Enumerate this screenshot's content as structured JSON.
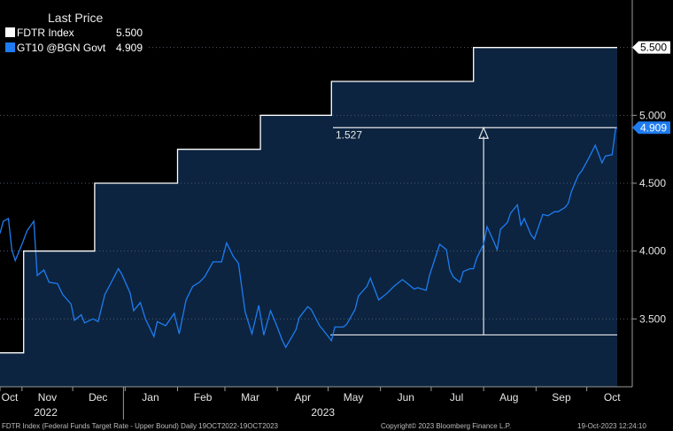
{
  "legend": {
    "title": "Last Price",
    "items": [
      {
        "label": "FDTR Index",
        "value": "5.500",
        "color": "#ffffff"
      },
      {
        "label": "GT10 @BGN Govt",
        "value": "4.909",
        "color": "#1e7cf0"
      }
    ]
  },
  "footer": {
    "source": "FDTR Index (Federal Funds Target Rate - Upper Bound)  Daily 19OCT2022-19OCT2023",
    "copyright": "Copyright© 2023 Bloomberg Finance L.P.",
    "timestamp": "19-Oct-2023 12:24:10"
  },
  "colors": {
    "background": "#000000",
    "plot_fill": "#0c2440",
    "fdtr": "#ffffff",
    "gt10": "#1e7cf0"
  },
  "chart_data": {
    "type": "line",
    "x_range": [
      "2022-10-19",
      "2023-10-19"
    ],
    "ylim": [
      3.0,
      5.85
    ],
    "y_ticks": [
      "3.500",
      "4.000",
      "4.500",
      "5.000",
      "5.500"
    ],
    "x_ticks": [
      {
        "label": "Oct",
        "date": "2022-10-01"
      },
      {
        "label": "Nov",
        "date": "2022-11-01"
      },
      {
        "label": "Dec",
        "date": "2022-12-01"
      },
      {
        "label": "Jan",
        "date": "2023-01-01"
      },
      {
        "label": "Feb",
        "date": "2023-02-01"
      },
      {
        "label": "Mar",
        "date": "2023-03-01"
      },
      {
        "label": "Apr",
        "date": "2023-04-01"
      },
      {
        "label": "May",
        "date": "2023-05-01"
      },
      {
        "label": "Jun",
        "date": "2023-06-01"
      },
      {
        "label": "Jul",
        "date": "2023-07-01"
      },
      {
        "label": "Aug",
        "date": "2023-08-01"
      },
      {
        "label": "Sep",
        "date": "2023-09-01"
      },
      {
        "label": "Oct",
        "date": "2023-10-01"
      }
    ],
    "year_labels": [
      {
        "label": "2022",
        "date": "2022-11-15"
      },
      {
        "label": "2023",
        "date": "2023-04-28"
      }
    ],
    "year_divider": "2022-12-31",
    "series": [
      {
        "name": "FDTR Index",
        "last": 5.5,
        "step": true,
        "points": [
          [
            "2022-10-19",
            3.25
          ],
          [
            "2022-11-02",
            4.0
          ],
          [
            "2022-12-14",
            4.5
          ],
          [
            "2023-02-01",
            4.75
          ],
          [
            "2023-03-22",
            5.0
          ],
          [
            "2023-05-03",
            5.25
          ],
          [
            "2023-07-26",
            5.5
          ],
          [
            "2023-10-19",
            5.5
          ]
        ]
      },
      {
        "name": "GT10 @BGN Govt",
        "last": 4.909,
        "points": [
          [
            "2022-10-19",
            4.13
          ],
          [
            "2022-10-21",
            4.22
          ],
          [
            "2022-10-24",
            4.24
          ],
          [
            "2022-10-26",
            4.01
          ],
          [
            "2022-10-28",
            3.93
          ],
          [
            "2022-11-01",
            4.05
          ],
          [
            "2022-11-04",
            4.15
          ],
          [
            "2022-11-08",
            4.22
          ],
          [
            "2022-11-10",
            3.82
          ],
          [
            "2022-11-14",
            3.86
          ],
          [
            "2022-11-17",
            3.77
          ],
          [
            "2022-11-22",
            3.76
          ],
          [
            "2022-11-25",
            3.68
          ],
          [
            "2022-11-30",
            3.61
          ],
          [
            "2022-12-02",
            3.49
          ],
          [
            "2022-12-06",
            3.53
          ],
          [
            "2022-12-08",
            3.47
          ],
          [
            "2022-12-13",
            3.5
          ],
          [
            "2022-12-16",
            3.48
          ],
          [
            "2022-12-20",
            3.68
          ],
          [
            "2022-12-23",
            3.75
          ],
          [
            "2022-12-28",
            3.87
          ],
          [
            "2022-12-30",
            3.83
          ],
          [
            "2023-01-04",
            3.69
          ],
          [
            "2023-01-06",
            3.56
          ],
          [
            "2023-01-10",
            3.62
          ],
          [
            "2023-01-13",
            3.5
          ],
          [
            "2023-01-18",
            3.37
          ],
          [
            "2023-01-20",
            3.48
          ],
          [
            "2023-01-25",
            3.45
          ],
          [
            "2023-01-30",
            3.54
          ],
          [
            "2023-02-02",
            3.39
          ],
          [
            "2023-02-06",
            3.64
          ],
          [
            "2023-02-10",
            3.74
          ],
          [
            "2023-02-14",
            3.77
          ],
          [
            "2023-02-17",
            3.81
          ],
          [
            "2023-02-22",
            3.92
          ],
          [
            "2023-02-27",
            3.92
          ],
          [
            "2023-03-02",
            4.06
          ],
          [
            "2023-03-06",
            3.96
          ],
          [
            "2023-03-09",
            3.91
          ],
          [
            "2023-03-13",
            3.55
          ],
          [
            "2023-03-17",
            3.39
          ],
          [
            "2023-03-21",
            3.6
          ],
          [
            "2023-03-24",
            3.38
          ],
          [
            "2023-03-28",
            3.56
          ],
          [
            "2023-03-31",
            3.47
          ],
          [
            "2023-04-04",
            3.34
          ],
          [
            "2023-04-06",
            3.29
          ],
          [
            "2023-04-12",
            3.42
          ],
          [
            "2023-04-14",
            3.51
          ],
          [
            "2023-04-19",
            3.59
          ],
          [
            "2023-04-21",
            3.57
          ],
          [
            "2023-04-26",
            3.45
          ],
          [
            "2023-04-28",
            3.42
          ],
          [
            "2023-05-03",
            3.34
          ],
          [
            "2023-05-05",
            3.44
          ],
          [
            "2023-05-10",
            3.44
          ],
          [
            "2023-05-12",
            3.46
          ],
          [
            "2023-05-17",
            3.57
          ],
          [
            "2023-05-19",
            3.67
          ],
          [
            "2023-05-24",
            3.74
          ],
          [
            "2023-05-26",
            3.8
          ],
          [
            "2023-05-31",
            3.64
          ],
          [
            "2023-06-05",
            3.69
          ],
          [
            "2023-06-09",
            3.74
          ],
          [
            "2023-06-14",
            3.79
          ],
          [
            "2023-06-16",
            3.77
          ],
          [
            "2023-06-21",
            3.72
          ],
          [
            "2023-06-23",
            3.73
          ],
          [
            "2023-06-28",
            3.71
          ],
          [
            "2023-06-30",
            3.82
          ],
          [
            "2023-07-06",
            4.05
          ],
          [
            "2023-07-10",
            4.01
          ],
          [
            "2023-07-12",
            3.86
          ],
          [
            "2023-07-14",
            3.81
          ],
          [
            "2023-07-18",
            3.77
          ],
          [
            "2023-07-20",
            3.85
          ],
          [
            "2023-07-24",
            3.87
          ],
          [
            "2023-07-26",
            3.87
          ],
          [
            "2023-07-28",
            3.95
          ],
          [
            "2023-08-01",
            4.05
          ],
          [
            "2023-08-03",
            4.18
          ],
          [
            "2023-08-07",
            4.07
          ],
          [
            "2023-08-09",
            4.01
          ],
          [
            "2023-08-11",
            4.16
          ],
          [
            "2023-08-15",
            4.21
          ],
          [
            "2023-08-17",
            4.28
          ],
          [
            "2023-08-21",
            4.34
          ],
          [
            "2023-08-23",
            4.19
          ],
          [
            "2023-08-25",
            4.24
          ],
          [
            "2023-08-29",
            4.12
          ],
          [
            "2023-08-31",
            4.09
          ],
          [
            "2023-09-05",
            4.27
          ],
          [
            "2023-09-08",
            4.26
          ],
          [
            "2023-09-12",
            4.29
          ],
          [
            "2023-09-14",
            4.29
          ],
          [
            "2023-09-18",
            4.32
          ],
          [
            "2023-09-20",
            4.35
          ],
          [
            "2023-09-22",
            4.44
          ],
          [
            "2023-09-26",
            4.56
          ],
          [
            "2023-09-28",
            4.59
          ],
          [
            "2023-10-02",
            4.68
          ],
          [
            "2023-10-04",
            4.73
          ],
          [
            "2023-10-06",
            4.78
          ],
          [
            "2023-10-10",
            4.65
          ],
          [
            "2023-10-12",
            4.7
          ],
          [
            "2023-10-16",
            4.71
          ],
          [
            "2023-10-18",
            4.9
          ],
          [
            "2023-10-19",
            4.909
          ]
        ]
      }
    ],
    "annotation": {
      "label": "1.527",
      "low": 3.382,
      "high": 4.909,
      "start": "2023-05-04",
      "end": "2023-10-19",
      "arrow_at": "2023-08-01"
    }
  }
}
